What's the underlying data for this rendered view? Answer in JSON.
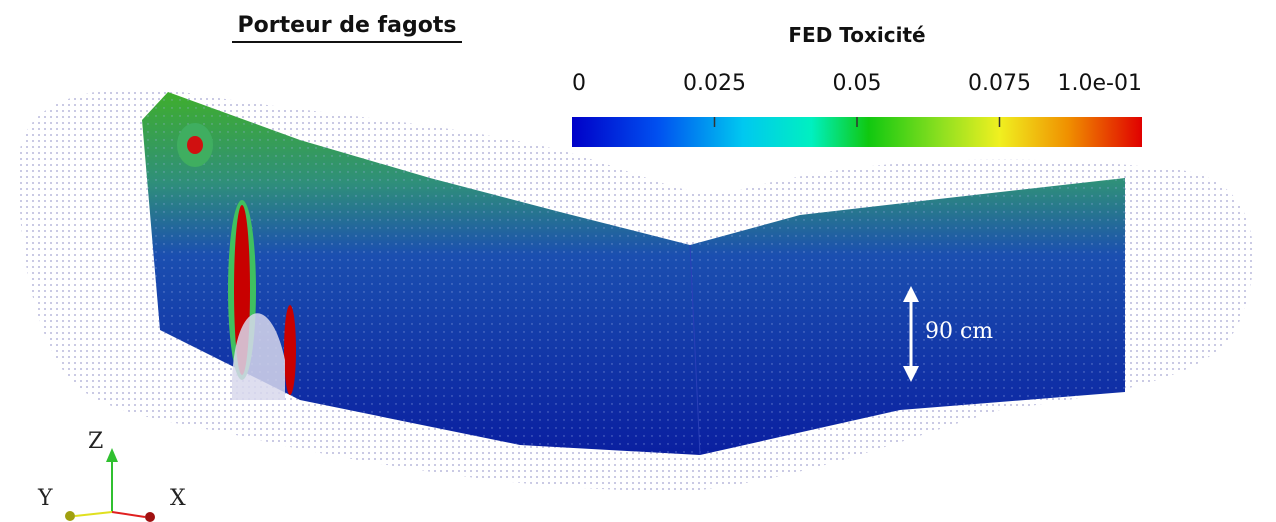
{
  "title": "Porteur de fagots",
  "colorbar": {
    "title": "FED Toxicité",
    "range": [
      0,
      0.1
    ],
    "ticks": [
      0,
      0.025,
      0.05,
      0.075,
      {
        "value": 0.1,
        "label": "1.0e-01"
      }
    ]
  },
  "annotation": "90 cm",
  "axes": {
    "z": "Z",
    "y": "Y",
    "x": "X"
  }
}
